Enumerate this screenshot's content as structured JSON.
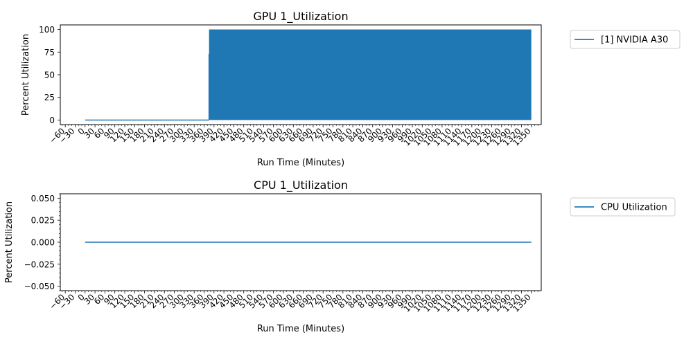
{
  "chart_data": [
    {
      "type": "line",
      "title": "GPU 1_Utilization",
      "xlabel": "Run Time (Minutes)",
      "ylabel": "Percent Utilization",
      "xlim": [
        -75,
        1380
      ],
      "ylim": [
        -5,
        105
      ],
      "x_ticks": [
        -60,
        -30,
        0,
        30,
        60,
        90,
        120,
        150,
        180,
        210,
        240,
        270,
        300,
        330,
        360,
        390,
        420,
        450,
        480,
        510,
        540,
        570,
        600,
        630,
        660,
        690,
        720,
        750,
        780,
        810,
        840,
        870,
        900,
        930,
        960,
        990,
        1020,
        1050,
        1080,
        1110,
        1140,
        1170,
        1200,
        1230,
        1260,
        1290,
        1320,
        1350
      ],
      "y_ticks": [
        0,
        25,
        50,
        75,
        100
      ],
      "legend": "outside-top-right",
      "series": [
        {
          "name": "[1] NVIDIA A30",
          "color": "#1f77b4",
          "segments": [
            {
              "x_start": 0,
              "x_end": 375,
              "value": 0,
              "pattern": "constant"
            },
            {
              "x_start": 375,
              "x_end": 1380,
              "value_min": 0,
              "value_max": 100,
              "pattern": "oscillating between min and max"
            }
          ]
        }
      ]
    },
    {
      "type": "line",
      "title": "CPU 1_Utilization",
      "xlabel": "Run Time (Minutes)",
      "ylabel": "Percent Utilization",
      "xlim": [
        -75,
        1380
      ],
      "ylim": [
        -0.055,
        0.055
      ],
      "x_ticks": [
        -60,
        -30,
        0,
        30,
        60,
        90,
        120,
        150,
        180,
        210,
        240,
        270,
        300,
        330,
        360,
        390,
        420,
        450,
        480,
        510,
        540,
        570,
        600,
        630,
        660,
        690,
        720,
        750,
        780,
        810,
        840,
        870,
        900,
        930,
        960,
        990,
        1020,
        1050,
        1080,
        1110,
        1140,
        1170,
        1200,
        1230,
        1260,
        1290,
        1320,
        1350
      ],
      "y_ticks": [
        -0.05,
        -0.025,
        0.0,
        0.025,
        0.05
      ],
      "y_tick_labels": [
        "−0.050",
        "−0.025",
        "0.000",
        "0.025",
        "0.050"
      ],
      "legend": "outside-top-right",
      "series": [
        {
          "name": "CPU Utilization",
          "color": "#1f77b4",
          "segments": [
            {
              "x_start": 0,
              "x_end": 1380,
              "value": 0,
              "pattern": "constant"
            }
          ]
        }
      ]
    }
  ]
}
